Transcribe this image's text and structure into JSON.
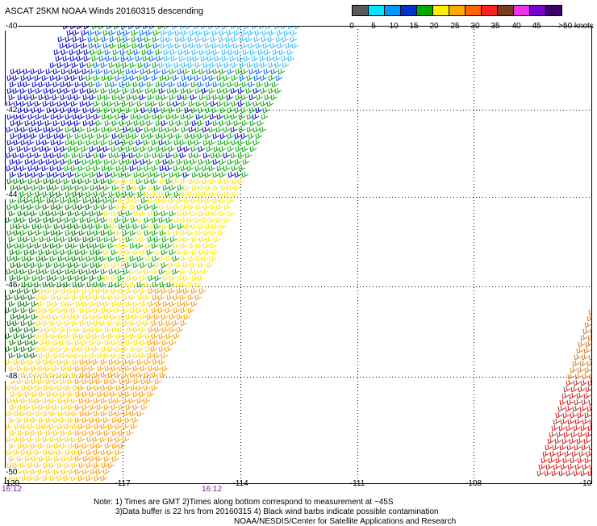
{
  "title": "ASCAT 25KM NOAA Winds 20160315 descending",
  "legend": {
    "colors": [
      "#5a5a5a",
      "#00e6ff",
      "#0099ff",
      "#0033cc",
      "#00aa00",
      "#ffee00",
      "#ffaa00",
      "#ff6600",
      "#ff2222",
      "#7a3b1e",
      "#ee33ee",
      "#7a00cc",
      "#3b006b"
    ],
    "labels": [
      "0",
      "5",
      "10",
      "15",
      "20",
      "25",
      "30",
      "35",
      "40",
      "45",
      ">50 knots"
    ]
  },
  "lat_labels": [
    "-40",
    "-42",
    "-44",
    "-46",
    "-48",
    "-50"
  ],
  "lon_labels": [
    "-120",
    "-117",
    "-114",
    "-111",
    "-108",
    "-10"
  ],
  "time_labels": [
    "16:12",
    "16:12"
  ],
  "notes": [
    "Note: 1) Times are GMT 2)Times along bottom correspond to measurement at ~45S",
    "3)Data buffer is 22 hrs from 20160315 4) Black wind barbs indicate possible contamination",
    "NOAA/NESDIS/Center for Satellite Applications and Research"
  ]
}
